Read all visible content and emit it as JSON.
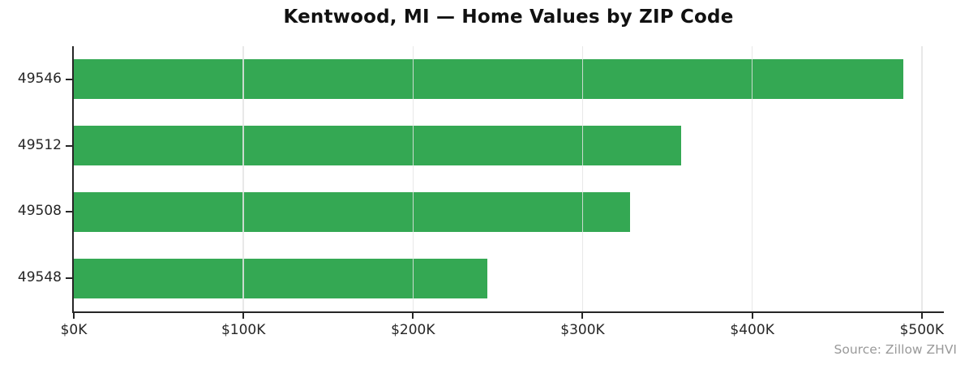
{
  "figure": {
    "title": "Kentwood, MI — Home Values by ZIP Code",
    "source_note": "Source: Zillow ZHVI"
  },
  "chart_data": {
    "type": "bar",
    "orientation": "horizontal",
    "title": "Kentwood, MI — Home Values by ZIP Code",
    "categories": [
      "49546",
      "49512",
      "49508",
      "49548"
    ],
    "values": [
      489,
      358,
      328,
      244
    ],
    "value_unit": "thousand USD",
    "series_name": "Home value (ZHVI)",
    "xlabel": "",
    "ylabel": "",
    "xlim": [
      0,
      513
    ],
    "x_ticks": [
      0,
      100,
      200,
      300,
      400,
      500
    ],
    "x_tick_labels": [
      "$0K",
      "$100K",
      "$200K",
      "$300K",
      "$400K",
      "$500K"
    ],
    "grid": true,
    "grid_axis": "x",
    "legend": false,
    "annotation": "Source: Zillow ZHVI",
    "colors": {
      "bar": "#34a853",
      "grid_over_bars": "rgba(228,228,228,0.85)",
      "spine": "#262626",
      "tick_label": "#262626",
      "title": "#111111",
      "source": "#999999"
    }
  }
}
